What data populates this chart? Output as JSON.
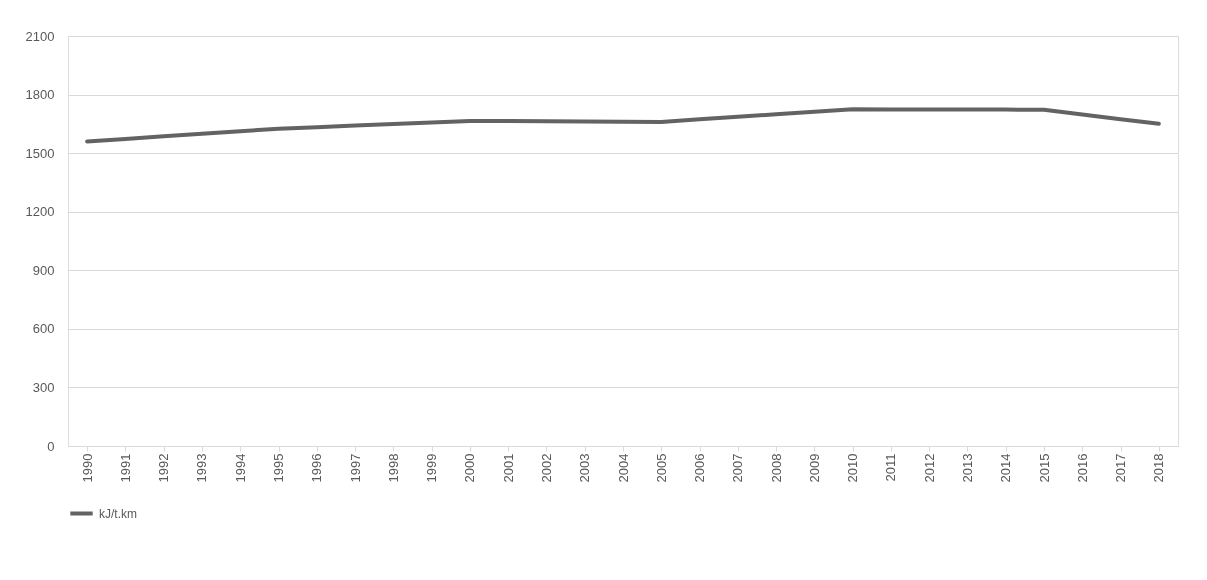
{
  "chart_data": {
    "type": "line",
    "categories": [
      "1990",
      "1991",
      "1992",
      "1993",
      "1994",
      "1995",
      "1996",
      "1997",
      "1998",
      "1999",
      "2000",
      "2001",
      "2002",
      "2003",
      "2004",
      "2005",
      "2006",
      "2007",
      "2008",
      "2009",
      "2010",
      "2011",
      "2012",
      "2013",
      "2014",
      "2015",
      "2016",
      "2017",
      "2018"
    ],
    "series": [
      {
        "name": "kJ/t.km",
        "color": "#636363",
        "values": [
          1560,
          1573,
          1586,
          1599,
          1612,
          1625,
          1633,
          1641,
          1649,
          1657,
          1665,
          1664,
          1663,
          1662,
          1661,
          1660,
          1673,
          1686,
          1699,
          1712,
          1725,
          1724,
          1724,
          1723,
          1723,
          1722,
          1698,
          1674,
          1650
        ]
      }
    ],
    "ylim": [
      0,
      2100
    ],
    "yticks": [
      0,
      300,
      600,
      900,
      1200,
      1500,
      1800,
      2100
    ],
    "grid": "y",
    "legend": "bottom",
    "marker": "none",
    "line_style": "solid"
  }
}
